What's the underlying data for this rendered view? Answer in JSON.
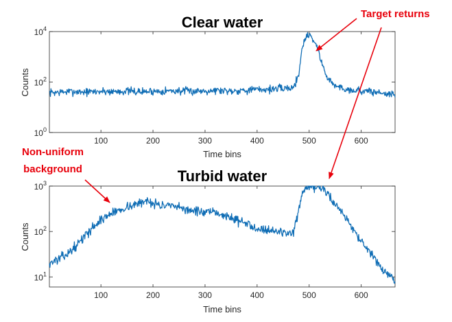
{
  "colors": {
    "line": "#0f6db5",
    "annotation": "#e8000b",
    "axis": "#262626"
  },
  "annotations": {
    "targets": "Target returns",
    "background_line1": "Non-uniform",
    "background_line2": "background"
  },
  "chart_data": [
    {
      "type": "line",
      "title": "Clear water",
      "xlabel": "Time bins",
      "ylabel": "Counts",
      "yscale": "log",
      "xlim": [
        1,
        665
      ],
      "ylim": [
        1,
        10000
      ],
      "xticks": [
        "100",
        "200",
        "300",
        "400",
        "500",
        "600"
      ],
      "yticks": [
        {
          "base": "10",
          "exp": "0"
        },
        {
          "base": "10",
          "exp": "2"
        },
        {
          "base": "10",
          "exp": "4"
        }
      ],
      "series": [
        {
          "name": "Clear water",
          "x": [
            1,
            25,
            50,
            75,
            100,
            125,
            150,
            175,
            200,
            225,
            250,
            275,
            300,
            325,
            350,
            375,
            400,
            425,
            470,
            480,
            485,
            490,
            495,
            500,
            505,
            510,
            515,
            520,
            525,
            530,
            540,
            550,
            575,
            600,
            625,
            650,
            665
          ],
          "y": [
            38,
            40,
            42,
            40,
            43,
            42,
            44,
            41,
            43,
            45,
            44,
            43,
            46,
            47,
            45,
            48,
            50,
            52,
            60,
            200,
            1500,
            4000,
            6500,
            8000,
            6000,
            4000,
            2500,
            1200,
            500,
            250,
            110,
            70,
            50,
            45,
            40,
            35,
            30
          ]
        }
      ]
    },
    {
      "type": "line",
      "title": "Turbid water",
      "xlabel": "Time bins",
      "ylabel": "Counts",
      "yscale": "log",
      "xlim": [
        1,
        665
      ],
      "ylim": [
        6,
        1000
      ],
      "xticks": [
        "100",
        "200",
        "300",
        "400",
        "500",
        "600"
      ],
      "yticks": [
        {
          "base": "10",
          "exp": "1"
        },
        {
          "base": "10",
          "exp": "2"
        },
        {
          "base": "10",
          "exp": "3"
        }
      ],
      "series": [
        {
          "name": "Turbid water",
          "x": [
            1,
            20,
            40,
            60,
            80,
            100,
            120,
            150,
            170,
            190,
            210,
            250,
            300,
            325,
            350,
            400,
            450,
            470,
            480,
            490,
            500,
            520,
            530,
            540,
            560,
            580,
            600,
            620,
            640,
            660,
            665
          ],
          "y": [
            20,
            25,
            35,
            60,
            110,
            180,
            250,
            350,
            400,
            480,
            390,
            330,
            260,
            255,
            200,
            120,
            95,
            95,
            300,
            800,
            900,
            950,
            800,
            560,
            300,
            140,
            60,
            30,
            15,
            9,
            7
          ]
        }
      ]
    }
  ]
}
